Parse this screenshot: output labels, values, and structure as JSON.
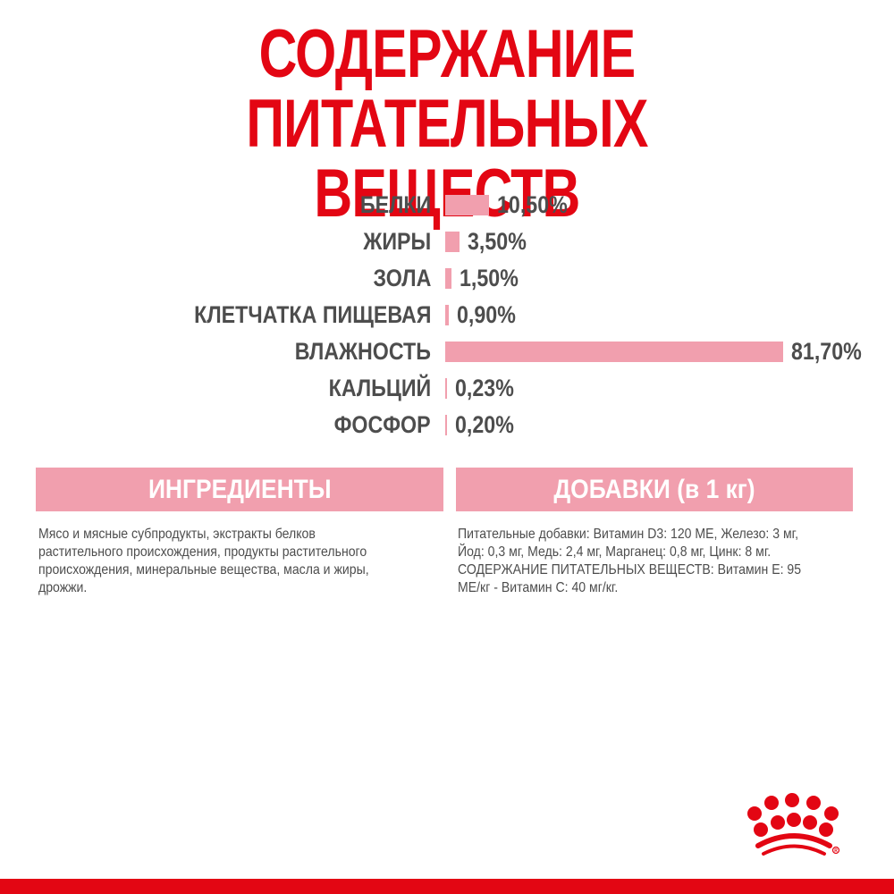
{
  "title": {
    "line1": "СОДЕРЖАНИЕ ПИТАТЕЛЬНЫХ",
    "line2": "ВЕЩЕСТВ"
  },
  "chart_data": {
    "type": "bar",
    "orientation": "horizontal",
    "title": "СОДЕРЖАНИЕ ПИТАТЕЛЬНЫХ ВЕЩЕСТВ",
    "categories": [
      "БЕЛКИ",
      "ЖИРЫ",
      "ЗОЛА",
      "КЛЕТЧАТКА ПИЩЕВАЯ",
      "ВЛАЖНОСТЬ",
      "КАЛЬЦИЙ",
      "ФОСФОР"
    ],
    "values": [
      10.5,
      3.5,
      1.5,
      0.9,
      81.7,
      0.23,
      0.2
    ],
    "value_labels": [
      "10,50%",
      "3,50%",
      "1,50%",
      "0,90%",
      "81,70%",
      "0,23%",
      "0,20%"
    ],
    "unit": "%",
    "xlabel": "",
    "ylabel": "",
    "grid": false,
    "legend": null,
    "bar_color": "#f19fae"
  },
  "ingredients": {
    "header": "ИНГРЕДИЕНТЫ",
    "lines": [
      "Мясо и мясные субпродукты, экстракты белков",
      "растительного происхождения, продукты растительного",
      "происхождения, минеральные вещества, масла и жиры,",
      "дрожжи."
    ]
  },
  "additives": {
    "header": "ДОБАВКИ (в 1 кг)",
    "lines": [
      "Питательные добавки: Витамин D3: 120 МЕ, Железо: 3 мг,",
      "Йод: 0,3 мг, Медь: 2,4 мг, Марганец: 0,8 мг, Цинк: 8 мг.",
      "СОДЕРЖАНИЕ ПИТАТЕЛЬНЫХ ВЕЩЕСТВ: Витамин Е: 95",
      "МЕ/кг - Витамин С: 40 мг/кг."
    ]
  },
  "brand": {
    "logo_icon": "royal-canin-crown-icon",
    "accent_color": "#e30613"
  }
}
